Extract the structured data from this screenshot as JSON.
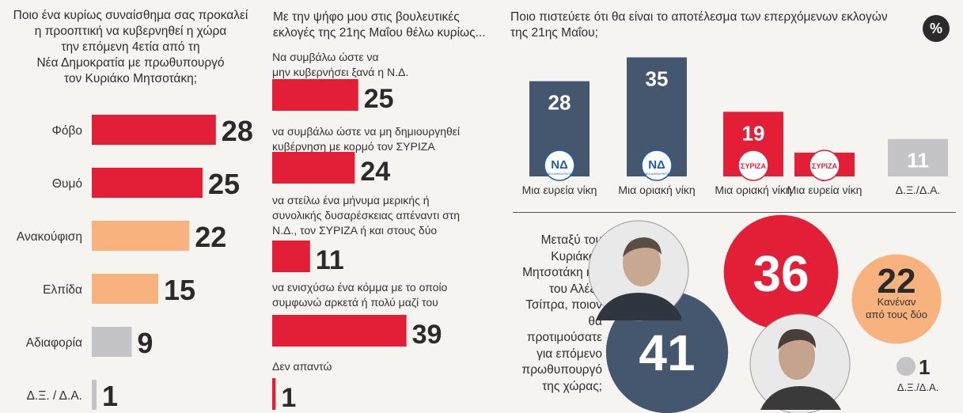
{
  "colors": {
    "red": "#e21f36",
    "orange": "#f8b27e",
    "gray": "#c4c4c6",
    "navy": "#45566f",
    "text": "#2b2b2b"
  },
  "chart_data": [
    {
      "type": "bar",
      "orientation": "horizontal",
      "title": "Ποιο ένα κυρίως συναίσθημα σας προκαλεί η προοπτική να κυβερνηθεί η χώρα την επόμενη 4ετία από τη Νέα Δημοκρατία με πρωθυπουργό τον Κυριάκο Μητσοτάκη;",
      "title_lines": [
        "Ποιο ένα κυρίως συναίσθημα σας προκαλεί",
        "η προοπτική να κυβερνηθεί η χώρα",
        "την επόμενη 4ετία από τη",
        "Νέα Δημοκρατία με πρωθυπουργό",
        "τον Κυριάκο Μητσοτάκη;"
      ],
      "categories": [
        "Φόβο",
        "Θυμό",
        "Ανακούφιση",
        "Ελπίδα",
        "Αδιαφορία",
        "Δ.Ξ. / Δ.Α."
      ],
      "values": [
        28,
        25,
        22,
        15,
        9,
        1
      ],
      "bar_colors": [
        "#e21f36",
        "#e21f36",
        "#f8b27e",
        "#f8b27e",
        "#c4c4c6",
        "#c4c4c6"
      ]
    },
    {
      "type": "bar",
      "orientation": "horizontal",
      "title": "Με την ψήφο μου στις βουλευτικές εκλογές της 21ης Μαΐου θέλω κυρίως...",
      "title_lines": [
        "Με την ψήφο μου στις βουλευτικές",
        "εκλογές της 21ης Μαΐου θέλω κυρίως..."
      ],
      "categories": [
        [
          "Να συμβάλω ώστε να",
          "μην κυβερνήσει ξανά η Ν.Δ."
        ],
        [
          "να συμβάλω ώστε να μη δημιουργηθεί",
          "κυβέρνηση με κορμό τον ΣΥΡΙΖΑ"
        ],
        [
          "να στείλω ένα μήνυμα μερικής ή",
          "συνολικής δυσαρέσκειας απέναντι στη",
          "Ν.Δ., τον ΣΥΡΙΖΑ ή και στους δύο"
        ],
        [
          "να ενισχύσω ένα κόμμα με το οποίο",
          "συμφωνώ αρκετά ή πολύ μαζί του"
        ],
        [
          "Δεν απαντώ"
        ]
      ],
      "values": [
        25,
        24,
        11,
        39,
        1
      ],
      "bar_color": "#e21f36"
    },
    {
      "type": "bar",
      "orientation": "vertical",
      "title": "Ποιο πιστεύετε ότι θα είναι το αποτέλεσμα των επερχόμενων εκλογών της 21ης Μαΐου;",
      "title_lines": [
        "Ποιο πιστεύετε ότι θα είναι το αποτέλεσμα των επερχόμενων εκλογών",
        "της 21ης Μαΐου;"
      ],
      "categories": [
        "Μια ευρεία νίκη",
        "Μια οριακή νίκη",
        "Μια οριακή νίκη",
        "Μια ευρεία νίκη",
        "Δ.Ξ./Δ.Α."
      ],
      "values": [
        28,
        35,
        19,
        7,
        11
      ],
      "bar_colors": [
        "#45566f",
        "#45566f",
        "#e21f36",
        "#e21f36",
        "#c4c4c6"
      ],
      "logos": [
        "ΝΔ",
        "ΝΔ",
        "ΣΥΡΙΖΑ",
        "ΣΥΡΙΖΑ",
        ""
      ],
      "logo_labels": [
        "ΝΕΑ ΔΗΜΟΚΡΑΤΙΑ",
        "ΝΕΑ ΔΗΜΟΚΡΑΤΙΑ",
        "",
        "",
        ""
      ],
      "unit_badge": "%"
    },
    {
      "type": "bubble",
      "title": "Μεταξύ του Κυριάκου Μητσοτάκη και του Αλέξη Τσίπρα, ποιον θα προτιμούσατε για επόμενο πρωθυπουργό της χώρας;",
      "title_lines": [
        "Μεταξύ του",
        "Κυριάκου",
        "Μητσοτάκη και",
        "του Αλέξη",
        "Τσίπρα, ποιον",
        "θα",
        "προτιμούσατε",
        "για επόμενο",
        "πρωθυπουργό",
        "της χώρας;"
      ],
      "categories": [
        "Κυριάκος Μητσοτάκης",
        "Αλέξης Τσίπρας",
        "Κανέναν από τους δύο",
        "Δ.Ξ./Δ.Α."
      ],
      "values": [
        41,
        36,
        22,
        1
      ],
      "bubble_colors": [
        "#45566f",
        "#e21f36",
        "#f8b27e",
        "#c4c4c6"
      ],
      "text_labels": {
        "none_line1": "Κανέναν",
        "none_line2": "από τους δύο",
        "dk": "Δ.Ξ./Δ.Α."
      }
    }
  ]
}
